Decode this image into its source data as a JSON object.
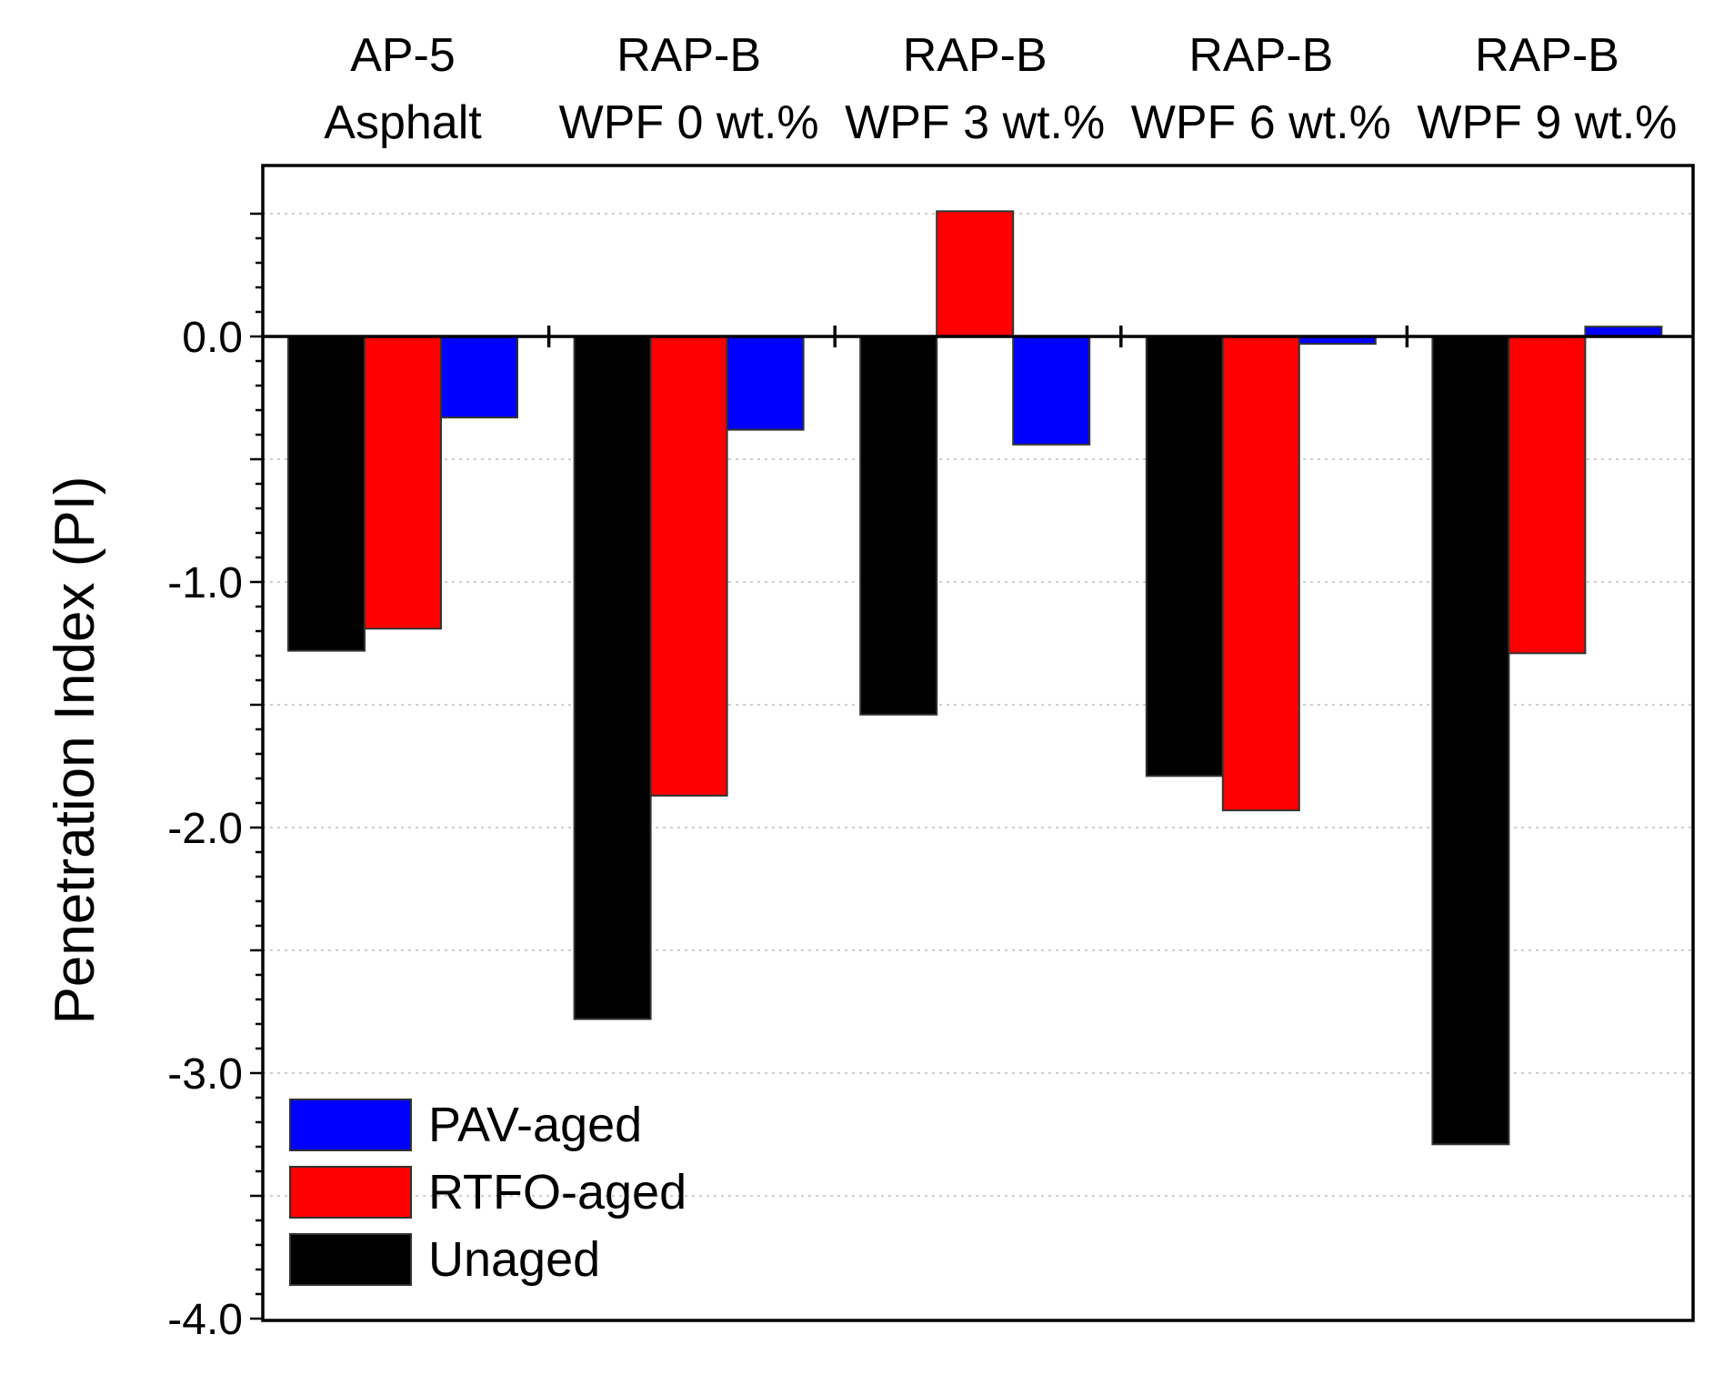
{
  "chart_data": {
    "type": "bar",
    "title": "",
    "xlabel": "",
    "ylabel": "Penetration Index (PI)",
    "ylim": [
      -4.0,
      0.7
    ],
    "yticks": [
      0.0,
      -1.0,
      -2.0,
      -3.0,
      -4.0
    ],
    "ytick_labels": [
      "0.0",
      "-1.0",
      "-2.0",
      "-3.0",
      "-4.0"
    ],
    "grid": true,
    "legend_position": "bottom-left",
    "categories": [
      {
        "line1": "AP-5",
        "line2": "Asphalt"
      },
      {
        "line1": "RAP-B",
        "line2": "WPF 0 wt.%"
      },
      {
        "line1": "RAP-B",
        "line2": "WPF 3 wt.%"
      },
      {
        "line1": "RAP-B",
        "line2": "WPF 6 wt.%"
      },
      {
        "line1": "RAP-B",
        "line2": "WPF 9 wt.%"
      }
    ],
    "series": [
      {
        "name": "Unaged",
        "color": "#000000",
        "values": [
          -1.28,
          -2.78,
          -1.54,
          -1.79,
          -3.29
        ]
      },
      {
        "name": "RTFO-aged",
        "color": "#ff0000",
        "values": [
          -1.19,
          -1.87,
          0.51,
          -1.93,
          -1.29
        ]
      },
      {
        "name": "PAV-aged",
        "color": "#0000ff",
        "values": [
          -0.33,
          -0.38,
          -0.44,
          -0.03,
          0.04
        ]
      }
    ],
    "legend_order": [
      "PAV-aged",
      "RTFO-aged",
      "Unaged"
    ]
  }
}
